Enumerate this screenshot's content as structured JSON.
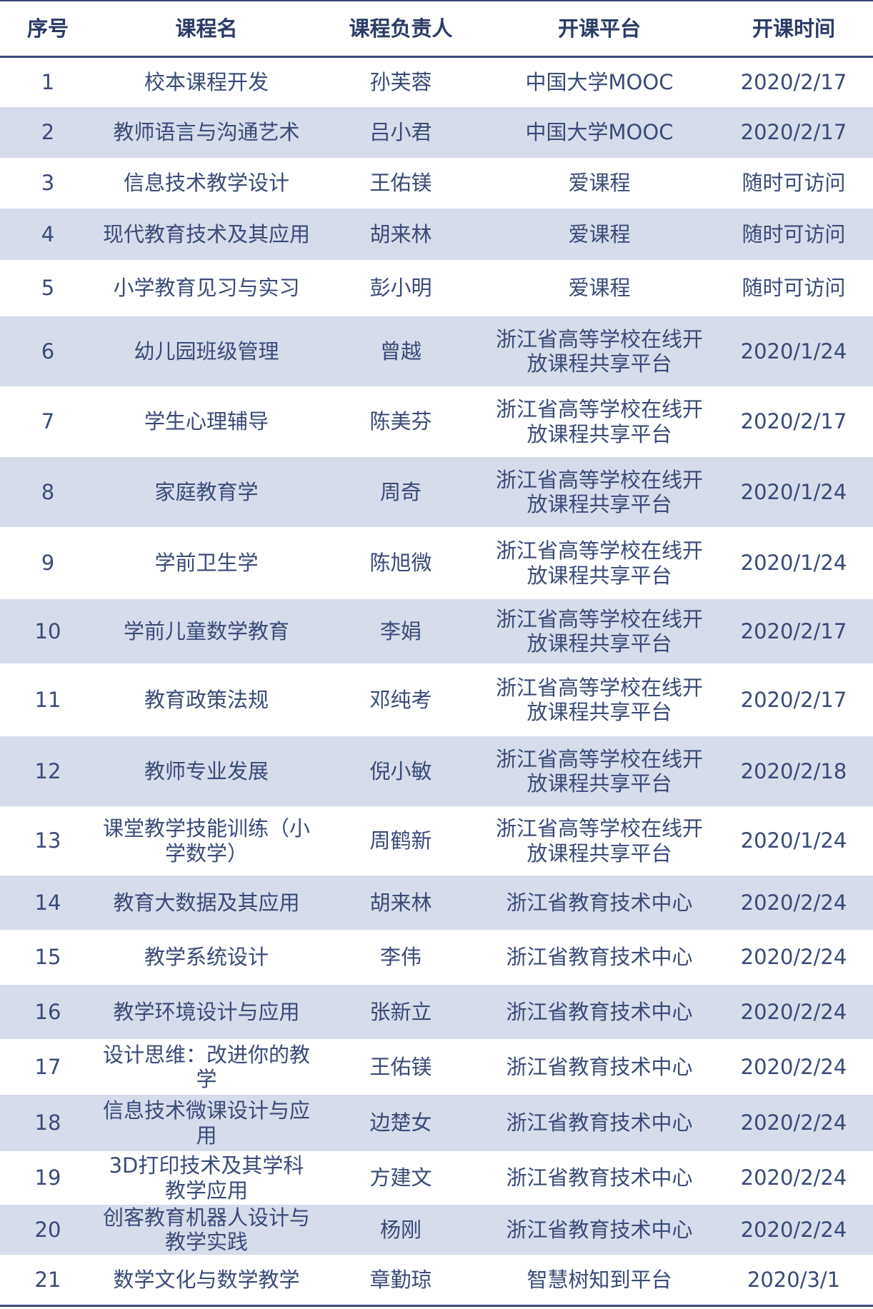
{
  "table": {
    "header": [
      "序号",
      "课程名",
      "课程负责人",
      "开课平台",
      "开课时间"
    ],
    "rows": [
      [
        "1",
        "校本课程开发",
        "孙芙蓉",
        "中国大学MOOC",
        "2020/2/17"
      ],
      [
        "2",
        "教师语言与沟通艺术",
        "吕小君",
        "中国大学MOOC",
        "2020/2/17"
      ],
      [
        "3",
        "信息技术教学设计",
        "王佑镁",
        "爱课程",
        "随时可访问"
      ],
      [
        "4",
        "现代教育技术及其应用",
        "胡来林",
        "爱课程",
        "随时可访问"
      ],
      [
        "5",
        "小学教育见习与实习",
        "彭小明",
        "爱课程",
        "随时可访问"
      ],
      [
        "6",
        "幼儿园班级管理",
        "曾越",
        "浙江省高等学校在线开放课程共享平台",
        "2020/1/24"
      ],
      [
        "7",
        "学生心理辅导",
        "陈美芬",
        "浙江省高等学校在线开放课程共享平台",
        "2020/2/17"
      ],
      [
        "8",
        "家庭教育学",
        "周奇",
        "浙江省高等学校在线开放课程共享平台",
        "2020/1/24"
      ],
      [
        "9",
        "学前卫生学",
        "陈旭微",
        "浙江省高等学校在线开放课程共享平台",
        "2020/1/24"
      ],
      [
        "10",
        "学前儿童数学教育",
        "李娟",
        "浙江省高等学校在线开放课程共享平台",
        "2020/2/17"
      ],
      [
        "11",
        "教育政策法规",
        "邓纯考",
        "浙江省高等学校在线开放课程共享平台",
        "2020/2/17"
      ],
      [
        "12",
        "教师专业发展",
        "倪小敏",
        "浙江省高等学校在线开放课程共享平台",
        "2020/2/18"
      ],
      [
        "13",
        "课堂教学技能训练（小学数学）",
        "周鹤新",
        "浙江省高等学校在线开放课程共享平台",
        "2020/1/24"
      ],
      [
        "14",
        "教育大数据及其应用",
        "胡来林",
        "浙江省教育技术中心",
        "2020/2/24"
      ],
      [
        "15",
        "教学系统设计",
        "李伟",
        "浙江省教育技术中心",
        "2020/2/24"
      ],
      [
        "16",
        "教学环境设计与应用",
        "张新立",
        "浙江省教育技术中心",
        "2020/2/24"
      ],
      [
        "17",
        "设计思维：改进你的教学",
        "王佑镁",
        "浙江省教育技术中心",
        "2020/2/24"
      ],
      [
        "18",
        "信息技术微课设计与应用",
        "边楚女",
        "浙江省教育技术中心",
        "2020/2/24"
      ],
      [
        "19",
        "3D打印技术及其学科教学应用",
        "方建文",
        "浙江省教育技术中心",
        "2020/2/24"
      ],
      [
        "20",
        "创客教育机器人设计与教学实践",
        "杨刚",
        "浙江省教育技术中心",
        "2020/2/24"
      ],
      [
        "21",
        "数学文化与数学教学",
        "章勤琼",
        "智慧树知到平台",
        "2020/3/1"
      ]
    ]
  }
}
